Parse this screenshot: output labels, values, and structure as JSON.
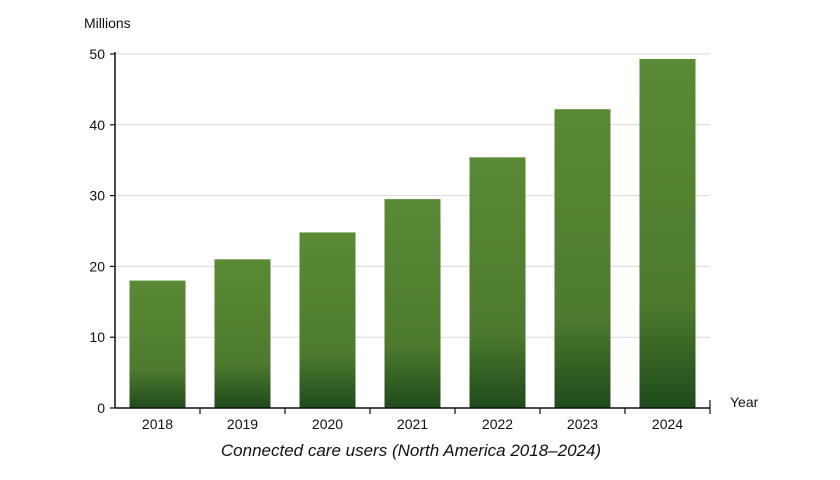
{
  "chart_data": {
    "type": "bar",
    "categories": [
      "2018",
      "2019",
      "2020",
      "2021",
      "2022",
      "2023",
      "2024"
    ],
    "values": [
      18,
      21,
      24.8,
      29.5,
      35.4,
      42.2,
      49.3
    ],
    "title": "Connected care users (North America 2018–2024)",
    "xlabel": "Year",
    "ylabel": "Millions",
    "ylim": [
      0,
      50
    ],
    "yticks": [
      0,
      10,
      20,
      30,
      40,
      50
    ],
    "grid": true,
    "bar_gradient": [
      "#5a8a35",
      "#4d7a2d",
      "#1f4a1c"
    ]
  }
}
